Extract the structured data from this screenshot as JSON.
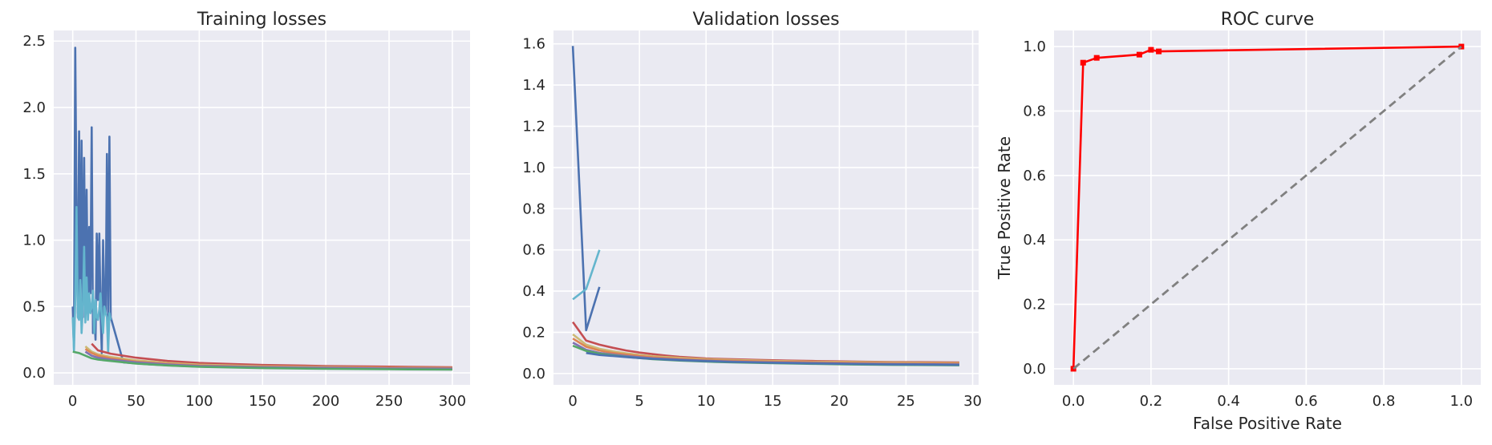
{
  "chart_data": [
    {
      "type": "line",
      "title": "Training losses",
      "xlabel": "",
      "ylabel": "",
      "xlim": [
        -15,
        314
      ],
      "ylim": [
        -0.09,
        2.58
      ],
      "xticks": [
        0,
        50,
        100,
        150,
        200,
        250,
        300
      ],
      "yticks": [
        0.0,
        0.5,
        1.0,
        1.5,
        2.0,
        2.5
      ],
      "xtick_labels": [
        "0",
        "50",
        "100",
        "150",
        "200",
        "250",
        "300"
      ],
      "ytick_labels": [
        "0.0",
        "0.5",
        "1.0",
        "1.5",
        "2.0",
        "2.5"
      ],
      "grid": true,
      "series": [
        {
          "color": "#4c72b0",
          "x": [
            0,
            1,
            2,
            3,
            4,
            5,
            6,
            7,
            8,
            9,
            10,
            11,
            12,
            13,
            14,
            15,
            16,
            17,
            18,
            19,
            20,
            21,
            22,
            23,
            24,
            25,
            26,
            27,
            28,
            29,
            30,
            40,
            60,
            80,
            100,
            150,
            200,
            250,
            300
          ],
          "y": [
            0.5,
            0.17,
            2.45,
            1.2,
            0.45,
            1.82,
            0.45,
            1.75,
            0.42,
            1.62,
            0.48,
            1.38,
            0.45,
            1.1,
            0.6,
            1.85,
            0.3,
            0.45,
            0.25,
            1.05,
            0.55,
            1.05,
            0.45,
            0.15,
            1.0,
            0.5,
            0.45,
            1.65,
            0.4,
            1.78,
            0.42,
            0.08,
            0.065,
            0.055,
            0.048,
            0.04,
            0.035,
            0.03,
            0.028
          ]
        },
        {
          "color": "#64b5cd",
          "x": [
            0,
            1,
            2,
            3,
            4,
            5,
            6,
            7,
            8,
            9,
            10,
            11,
            12,
            13,
            14,
            15,
            16,
            17,
            18,
            19,
            20,
            21,
            22,
            23,
            24,
            25,
            26,
            27,
            28,
            29,
            30
          ],
          "y": [
            0.42,
            0.16,
            0.55,
            1.25,
            0.42,
            0.4,
            0.7,
            0.3,
            0.5,
            0.95,
            0.38,
            0.72,
            0.4,
            0.6,
            0.45,
            0.5,
            0.62,
            0.3,
            0.55,
            0.42,
            0.4,
            0.48,
            0.6,
            0.42,
            0.3,
            0.5,
            0.45,
            0.42,
            0.15,
            0.45,
            0.4
          ]
        },
        {
          "color": "#c44e52",
          "x": [
            15,
            20,
            30,
            50,
            75,
            100,
            150,
            200,
            250,
            300
          ],
          "y": [
            0.22,
            0.17,
            0.145,
            0.115,
            0.09,
            0.075,
            0.06,
            0.052,
            0.047,
            0.043
          ]
        },
        {
          "color": "#ccb974",
          "x": [
            10,
            15,
            20,
            30,
            50,
            75,
            100,
            150,
            200,
            250,
            300
          ],
          "y": [
            0.2,
            0.16,
            0.14,
            0.12,
            0.095,
            0.075,
            0.062,
            0.05,
            0.045,
            0.04,
            0.038
          ]
        },
        {
          "color": "#dd8452",
          "x": [
            10,
            15,
            20,
            30,
            50,
            75,
            100,
            150,
            200,
            250,
            300
          ],
          "y": [
            0.18,
            0.15,
            0.13,
            0.11,
            0.085,
            0.068,
            0.056,
            0.046,
            0.041,
            0.038,
            0.036
          ]
        },
        {
          "color": "#8172b2",
          "x": [
            10,
            15,
            20,
            30,
            50,
            75,
            100,
            150,
            200,
            250,
            300
          ],
          "y": [
            0.16,
            0.13,
            0.115,
            0.1,
            0.08,
            0.064,
            0.052,
            0.043,
            0.038,
            0.034,
            0.032
          ]
        },
        {
          "color": "#55a868",
          "x": [
            0,
            5,
            10,
            15,
            20,
            30,
            50,
            75,
            100,
            150,
            200,
            250,
            300
          ],
          "y": [
            0.16,
            0.15,
            0.13,
            0.11,
            0.1,
            0.09,
            0.07,
            0.056,
            0.046,
            0.036,
            0.031,
            0.028,
            0.025
          ]
        }
      ]
    },
    {
      "type": "line",
      "title": "Validation losses",
      "xlabel": "",
      "ylabel": "",
      "xlim": [
        -1.45,
        30.45
      ],
      "ylim": [
        -0.055,
        1.665
      ],
      "xticks": [
        0,
        5,
        10,
        15,
        20,
        25,
        30
      ],
      "yticks": [
        0.0,
        0.2,
        0.4,
        0.6,
        0.8,
        1.0,
        1.2,
        1.4,
        1.6
      ],
      "xtick_labels": [
        "0",
        "5",
        "10",
        "15",
        "20",
        "25",
        "30"
      ],
      "ytick_labels": [
        "0.0",
        "0.2",
        "0.4",
        "0.6",
        "0.8",
        "1.0",
        "1.2",
        "1.4",
        "1.6"
      ],
      "grid": true,
      "series": [
        {
          "color": "#4c72b0",
          "x": [
            0,
            1,
            2
          ],
          "y": [
            1.59,
            0.21,
            0.42
          ]
        },
        {
          "color": "#64b5cd",
          "x": [
            0,
            1,
            2
          ],
          "y": [
            0.36,
            0.41,
            0.6
          ]
        },
        {
          "color": "#c44e52",
          "x": [
            0,
            1,
            2,
            3,
            4,
            5,
            6,
            7,
            8,
            9,
            10,
            12,
            14,
            16,
            18,
            20,
            22,
            24,
            26,
            29
          ],
          "y": [
            0.25,
            0.16,
            0.14,
            0.125,
            0.112,
            0.102,
            0.094,
            0.087,
            0.081,
            0.077,
            0.073,
            0.069,
            0.066,
            0.063,
            0.061,
            0.059,
            0.057,
            0.056,
            0.055,
            0.054
          ]
        },
        {
          "color": "#ccb974",
          "x": [
            0,
            1,
            2,
            3,
            4,
            5,
            6,
            8,
            10,
            12,
            15,
            18,
            21,
            24,
            27,
            29
          ],
          "y": [
            0.19,
            0.14,
            0.12,
            0.108,
            0.098,
            0.09,
            0.084,
            0.076,
            0.07,
            0.066,
            0.061,
            0.058,
            0.056,
            0.054,
            0.052,
            0.051
          ]
        },
        {
          "color": "#dd8452",
          "x": [
            0,
            1,
            2,
            3,
            4,
            5,
            6,
            8,
            10,
            12,
            15,
            18,
            21,
            24,
            27,
            29
          ],
          "y": [
            0.17,
            0.13,
            0.112,
            0.1,
            0.092,
            0.085,
            0.079,
            0.071,
            0.066,
            0.062,
            0.058,
            0.055,
            0.052,
            0.05,
            0.049,
            0.048
          ]
        },
        {
          "color": "#8172b2",
          "x": [
            0,
            1,
            2,
            3,
            4,
            5,
            6,
            8,
            10,
            12,
            15,
            18,
            21,
            24,
            27,
            29
          ],
          "y": [
            0.15,
            0.115,
            0.1,
            0.092,
            0.085,
            0.079,
            0.074,
            0.067,
            0.062,
            0.058,
            0.054,
            0.051,
            0.048,
            0.046,
            0.045,
            0.044
          ]
        },
        {
          "color": "#55a868",
          "x": [
            0,
            1,
            2,
            3,
            4,
            5,
            6,
            8,
            10,
            12,
            15,
            18,
            21,
            24,
            27,
            29
          ],
          "y": [
            0.135,
            0.11,
            0.096,
            0.088,
            0.081,
            0.075,
            0.07,
            0.063,
            0.058,
            0.054,
            0.05,
            0.047,
            0.044,
            0.042,
            0.041,
            0.04
          ]
        },
        {
          "color": "#4c72b0",
          "x": [
            1,
            2,
            3,
            4,
            5,
            6,
            8,
            10,
            12,
            15,
            18,
            21,
            24,
            27,
            29
          ],
          "y": [
            0.1,
            0.09,
            0.085,
            0.08,
            0.075,
            0.071,
            0.065,
            0.06,
            0.056,
            0.052,
            0.049,
            0.046,
            0.044,
            0.043,
            0.042
          ]
        }
      ]
    },
    {
      "type": "line",
      "title": "ROC curve",
      "xlabel": "False Positive Rate",
      "ylabel": "True Positive Rate",
      "xlim": [
        -0.05,
        1.05
      ],
      "ylim": [
        -0.05,
        1.05
      ],
      "xticks": [
        0.0,
        0.2,
        0.4,
        0.6,
        0.8,
        1.0
      ],
      "yticks": [
        0.0,
        0.2,
        0.4,
        0.6,
        0.8,
        1.0
      ],
      "xtick_labels": [
        "0.0",
        "0.2",
        "0.4",
        "0.6",
        "0.8",
        "1.0"
      ],
      "ytick_labels": [
        "0.0",
        "0.2",
        "0.4",
        "0.6",
        "0.8",
        "1.0"
      ],
      "grid": true,
      "series": [
        {
          "color": "#ff0000",
          "markers": true,
          "x": [
            0.0,
            0.025,
            0.06,
            0.17,
            0.2,
            0.22,
            1.0
          ],
          "y": [
            0.0,
            0.95,
            0.965,
            0.975,
            0.99,
            0.985,
            1.0
          ]
        },
        {
          "color": "#808080",
          "dashed": true,
          "x": [
            0.0,
            1.0
          ],
          "y": [
            0.0,
            1.0
          ]
        }
      ]
    }
  ]
}
